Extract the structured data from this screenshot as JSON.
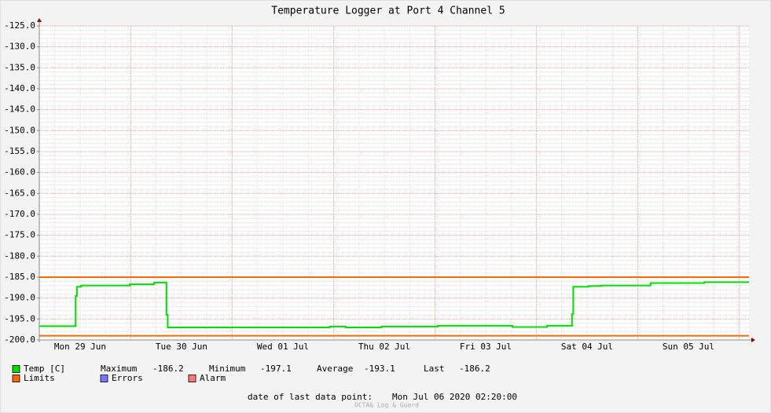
{
  "chart_data": {
    "type": "line",
    "title": "Temperature Logger at Port 4 Channel 5",
    "xlim": [
      0,
      168
    ],
    "xticks": [
      {
        "value": 9.667,
        "label": "Mon 29 Jun"
      },
      {
        "value": 33.667,
        "label": "Tue 30 Jun"
      },
      {
        "value": 57.667,
        "label": "Wed 01 Jul"
      },
      {
        "value": 81.667,
        "label": "Thu 02 Jul"
      },
      {
        "value": 105.667,
        "label": "Fri 03 Jul"
      },
      {
        "value": 129.667,
        "label": "Sat 04 Jul"
      },
      {
        "value": 153.667,
        "label": "Sun 05 Jul"
      }
    ],
    "ylim": [
      -200,
      -125
    ],
    "yticks": [
      {
        "value": -200,
        "label": "-200.0"
      },
      {
        "value": -195,
        "label": "-195.0"
      },
      {
        "value": -190,
        "label": "-190.0"
      },
      {
        "value": -185,
        "label": "-185.0"
      },
      {
        "value": -180,
        "label": "-180.0"
      },
      {
        "value": -175,
        "label": "-175.0"
      },
      {
        "value": -170,
        "label": "-170.0"
      },
      {
        "value": -165,
        "label": "-165.0"
      },
      {
        "value": -160,
        "label": "-160.0"
      },
      {
        "value": -155,
        "label": "-155.0"
      },
      {
        "value": -150,
        "label": "-150.0"
      },
      {
        "value": -145,
        "label": "-145.0"
      },
      {
        "value": -140,
        "label": "-140.0"
      },
      {
        "value": -135,
        "label": "-135.0"
      },
      {
        "value": -130,
        "label": "-130.0"
      },
      {
        "value": -125,
        "label": "-125.0"
      }
    ],
    "grid": true,
    "x": [
      0,
      8.6,
      8.6,
      8.9,
      8.9,
      9.9,
      9.9,
      21.4,
      21.4,
      27.2,
      27.2,
      30.1,
      30.1,
      30.4,
      30.4,
      68.8,
      68.8,
      72.5,
      72.5,
      81.0,
      81.0,
      94.3,
      94.3,
      112,
      112,
      120.2,
      120.2,
      126.1,
      126.1,
      126.4,
      126.4,
      130,
      130,
      133,
      133,
      144.7,
      144.7,
      157.4,
      157.4,
      168
    ],
    "series": [
      {
        "name": "Temp [C]",
        "color": "#00e000",
        "values": [
          -196.7,
          -196.7,
          -189.5,
          -189.5,
          -187.3,
          -187.3,
          -187.0,
          -187.0,
          -186.7,
          -186.7,
          -186.3,
          -186.3,
          -194.0,
          -194.0,
          -197.0,
          -197.0,
          -196.8,
          -196.8,
          -197.0,
          -197.0,
          -196.8,
          -196.8,
          -196.6,
          -196.6,
          -196.9,
          -196.9,
          -196.6,
          -196.6,
          -193.8,
          -193.8,
          -187.3,
          -187.3,
          -187.1,
          -187.1,
          -187.0,
          -187.0,
          -186.4,
          -186.4,
          -186.2,
          -186.2
        ]
      }
    ],
    "limits": {
      "name": "Limits",
      "color": "#ff6600",
      "values": [
        -185,
        -199
      ]
    },
    "extra_legend": [
      {
        "name": "Errors",
        "color": "#7777ff"
      },
      {
        "name": "Alarm",
        "color": "#ff7777"
      }
    ],
    "stats": [
      {
        "label": "Maximum",
        "value": -186.2
      },
      {
        "label": "Minimum",
        "value": -197.1
      },
      {
        "label": "Average",
        "value": -193.1
      },
      {
        "label": "Last",
        "value": -186.2
      }
    ],
    "footer_label": "date of last data point:",
    "footer_date": "Mon Jul 06 2020 02:20:00",
    "watermark": "OCTA& Log & Guard"
  }
}
